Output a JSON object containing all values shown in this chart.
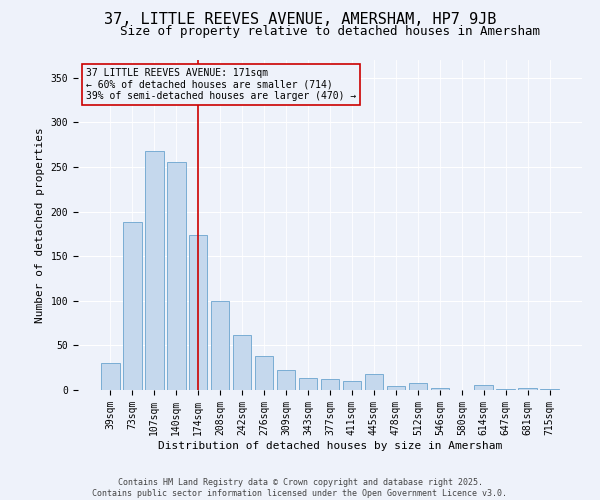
{
  "title": "37, LITTLE REEVES AVENUE, AMERSHAM, HP7 9JB",
  "subtitle": "Size of property relative to detached houses in Amersham",
  "xlabel": "Distribution of detached houses by size in Amersham",
  "ylabel": "Number of detached properties",
  "categories": [
    "39sqm",
    "73sqm",
    "107sqm",
    "140sqm",
    "174sqm",
    "208sqm",
    "242sqm",
    "276sqm",
    "309sqm",
    "343sqm",
    "377sqm",
    "411sqm",
    "445sqm",
    "478sqm",
    "512sqm",
    "546sqm",
    "580sqm",
    "614sqm",
    "647sqm",
    "681sqm",
    "715sqm"
  ],
  "values": [
    30,
    188,
    268,
    256,
    174,
    100,
    62,
    38,
    22,
    14,
    12,
    10,
    18,
    5,
    8,
    2,
    0,
    6,
    1,
    2,
    1
  ],
  "bar_color": "#c5d8ed",
  "bar_edge_color": "#7aadd4",
  "background_color": "#eef2fa",
  "vline_x_index": 4,
  "vline_color": "#cc0000",
  "annotation_box_text": "37 LITTLE REEVES AVENUE: 171sqm\n← 60% of detached houses are smaller (714)\n39% of semi-detached houses are larger (470) →",
  "annotation_box_color": "#cc0000",
  "ylim": [
    0,
    370
  ],
  "yticks": [
    0,
    50,
    100,
    150,
    200,
    250,
    300,
    350
  ],
  "footer_line1": "Contains HM Land Registry data © Crown copyright and database right 2025.",
  "footer_line2": "Contains public sector information licensed under the Open Government Licence v3.0.",
  "title_fontsize": 11,
  "subtitle_fontsize": 9,
  "xlabel_fontsize": 8,
  "ylabel_fontsize": 8,
  "tick_fontsize": 7,
  "annotation_fontsize": 7,
  "footer_fontsize": 6
}
